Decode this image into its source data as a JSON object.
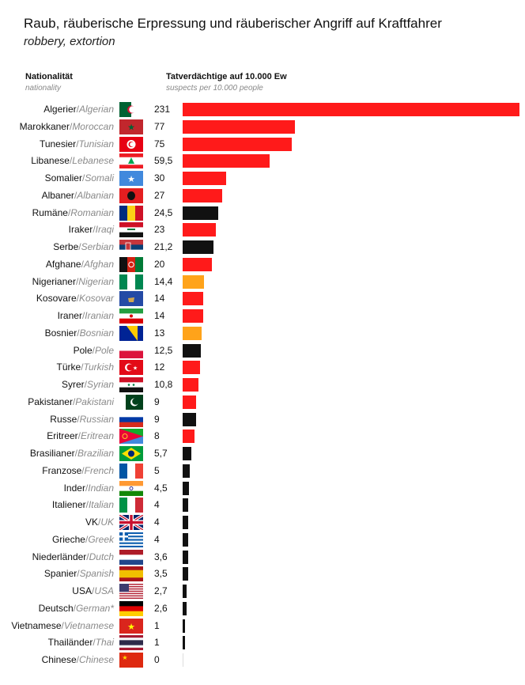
{
  "header": {
    "title": "Raub, räuberische Erpressung und räuberischer Angriff auf Kraftfahrer",
    "subtitle": "robbery, extortion"
  },
  "columns": {
    "nationality_de": "Nationalität",
    "nationality_en": "nationality",
    "value_de": "Tatverdächtige auf 10.000 Ew",
    "value_en": "suspects per 10.000 people"
  },
  "colors": {
    "red": "#ff1a1a",
    "black": "#111111",
    "orange": "#ffa31a"
  },
  "chart_data": {
    "type": "bar",
    "orientation": "horizontal",
    "title": "Raub, räuberische Erpressung und räuberischer Angriff auf Kraftfahrer",
    "subtitle": "robbery, extortion",
    "xlabel": "Tatverdächtige auf 10.000 Ew / suspects per 10.000 people",
    "ylabel": "Nationalität / nationality",
    "xlim": [
      0,
      231
    ],
    "grid": false,
    "legend": "none",
    "categories": [
      {
        "de": "Algerier",
        "en": "Algerian",
        "value": 231,
        "value_label": "231",
        "color": "red",
        "flag": "algeria"
      },
      {
        "de": "Marokkaner",
        "en": "Moroccan",
        "value": 77,
        "value_label": "77",
        "color": "red",
        "flag": "morocco"
      },
      {
        "de": "Tunesier",
        "en": "Tunisian",
        "value": 75,
        "value_label": "75",
        "color": "red",
        "flag": "tunisia"
      },
      {
        "de": "Libanese",
        "en": "Lebanese",
        "value": 59.5,
        "value_label": "59,5",
        "color": "red",
        "flag": "lebanon"
      },
      {
        "de": "Somalier",
        "en": "Somali",
        "value": 30,
        "value_label": "30",
        "color": "red",
        "flag": "somalia"
      },
      {
        "de": "Albaner",
        "en": "Albanian",
        "value": 27,
        "value_label": "27",
        "color": "red",
        "flag": "albania"
      },
      {
        "de": "Rumäne",
        "en": "Romanian",
        "value": 24.5,
        "value_label": "24,5",
        "color": "black",
        "flag": "romania"
      },
      {
        "de": "Iraker",
        "en": "Iraqi",
        "value": 23,
        "value_label": "23",
        "color": "red",
        "flag": "iraq"
      },
      {
        "de": "Serbe",
        "en": "Serbian",
        "value": 21.2,
        "value_label": "21,2",
        "color": "black",
        "flag": "serbia"
      },
      {
        "de": "Afghane",
        "en": "Afghan",
        "value": 20,
        "value_label": "20",
        "color": "red",
        "flag": "afghanistan"
      },
      {
        "de": "Nigerianer",
        "en": "Nigerian",
        "value": 14.4,
        "value_label": "14,4",
        "color": "orange",
        "flag": "nigeria"
      },
      {
        "de": "Kosovare",
        "en": "Kosovar",
        "value": 14,
        "value_label": "14",
        "color": "red",
        "flag": "kosovo"
      },
      {
        "de": "Iraner",
        "en": "Iranian",
        "value": 14,
        "value_label": "14",
        "color": "red",
        "flag": "iran"
      },
      {
        "de": "Bosnier",
        "en": "Bosnian",
        "value": 13,
        "value_label": "13",
        "color": "orange",
        "flag": "bosnia"
      },
      {
        "de": "Pole",
        "en": "Pole",
        "value": 12.5,
        "value_label": "12,5",
        "color": "black",
        "flag": "poland"
      },
      {
        "de": "Türke",
        "en": "Turkish",
        "value": 12,
        "value_label": "12",
        "color": "red",
        "flag": "turkey"
      },
      {
        "de": "Syrer",
        "en": "Syrian",
        "value": 10.8,
        "value_label": "10,8",
        "color": "red",
        "flag": "syria"
      },
      {
        "de": "Pakistaner",
        "en": "Pakistani",
        "value": 9,
        "value_label": "9",
        "color": "red",
        "flag": "pakistan"
      },
      {
        "de": "Russe",
        "en": "Russian",
        "value": 9,
        "value_label": "9",
        "color": "black",
        "flag": "russia"
      },
      {
        "de": "Eritreer",
        "en": "Eritrean",
        "value": 8,
        "value_label": "8",
        "color": "red",
        "flag": "eritrea"
      },
      {
        "de": "Brasilianer",
        "en": "Brazilian",
        "value": 5.7,
        "value_label": "5,7",
        "color": "black",
        "flag": "brazil"
      },
      {
        "de": "Franzose",
        "en": "French",
        "value": 5,
        "value_label": "5",
        "color": "black",
        "flag": "france"
      },
      {
        "de": "Inder",
        "en": "Indian",
        "value": 4.5,
        "value_label": "4,5",
        "color": "black",
        "flag": "india"
      },
      {
        "de": "Italiener",
        "en": "Italian",
        "value": 4,
        "value_label": "4",
        "color": "black",
        "flag": "italy"
      },
      {
        "de": "VK",
        "en": "UK",
        "value": 4,
        "value_label": "4",
        "color": "black",
        "flag": "uk"
      },
      {
        "de": "Grieche",
        "en": "Greek",
        "value": 4,
        "value_label": "4",
        "color": "black",
        "flag": "greece"
      },
      {
        "de": "Niederländer",
        "en": "Dutch",
        "value": 3.6,
        "value_label": "3,6",
        "color": "black",
        "flag": "netherlands"
      },
      {
        "de": "Spanier",
        "en": "Spanish",
        "value": 3.5,
        "value_label": "3,5",
        "color": "black",
        "flag": "spain"
      },
      {
        "de": "USA",
        "en": "USA",
        "value": 2.7,
        "value_label": "2,7",
        "color": "black",
        "flag": "usa"
      },
      {
        "de": "Deutsch",
        "en": "German*",
        "value": 2.6,
        "value_label": "2,6",
        "color": "black",
        "flag": "germany"
      },
      {
        "de": "Vietnamese",
        "en": "Vietnamese",
        "value": 1,
        "value_label": "1",
        "color": "black",
        "flag": "vietnam"
      },
      {
        "de": "Thailänder",
        "en": "Thai",
        "value": 1,
        "value_label": "1",
        "color": "black",
        "flag": "thailand"
      },
      {
        "de": "Chinese",
        "en": "Chinese",
        "value": 0,
        "value_label": "0",
        "color": "black",
        "flag": "china"
      }
    ]
  }
}
